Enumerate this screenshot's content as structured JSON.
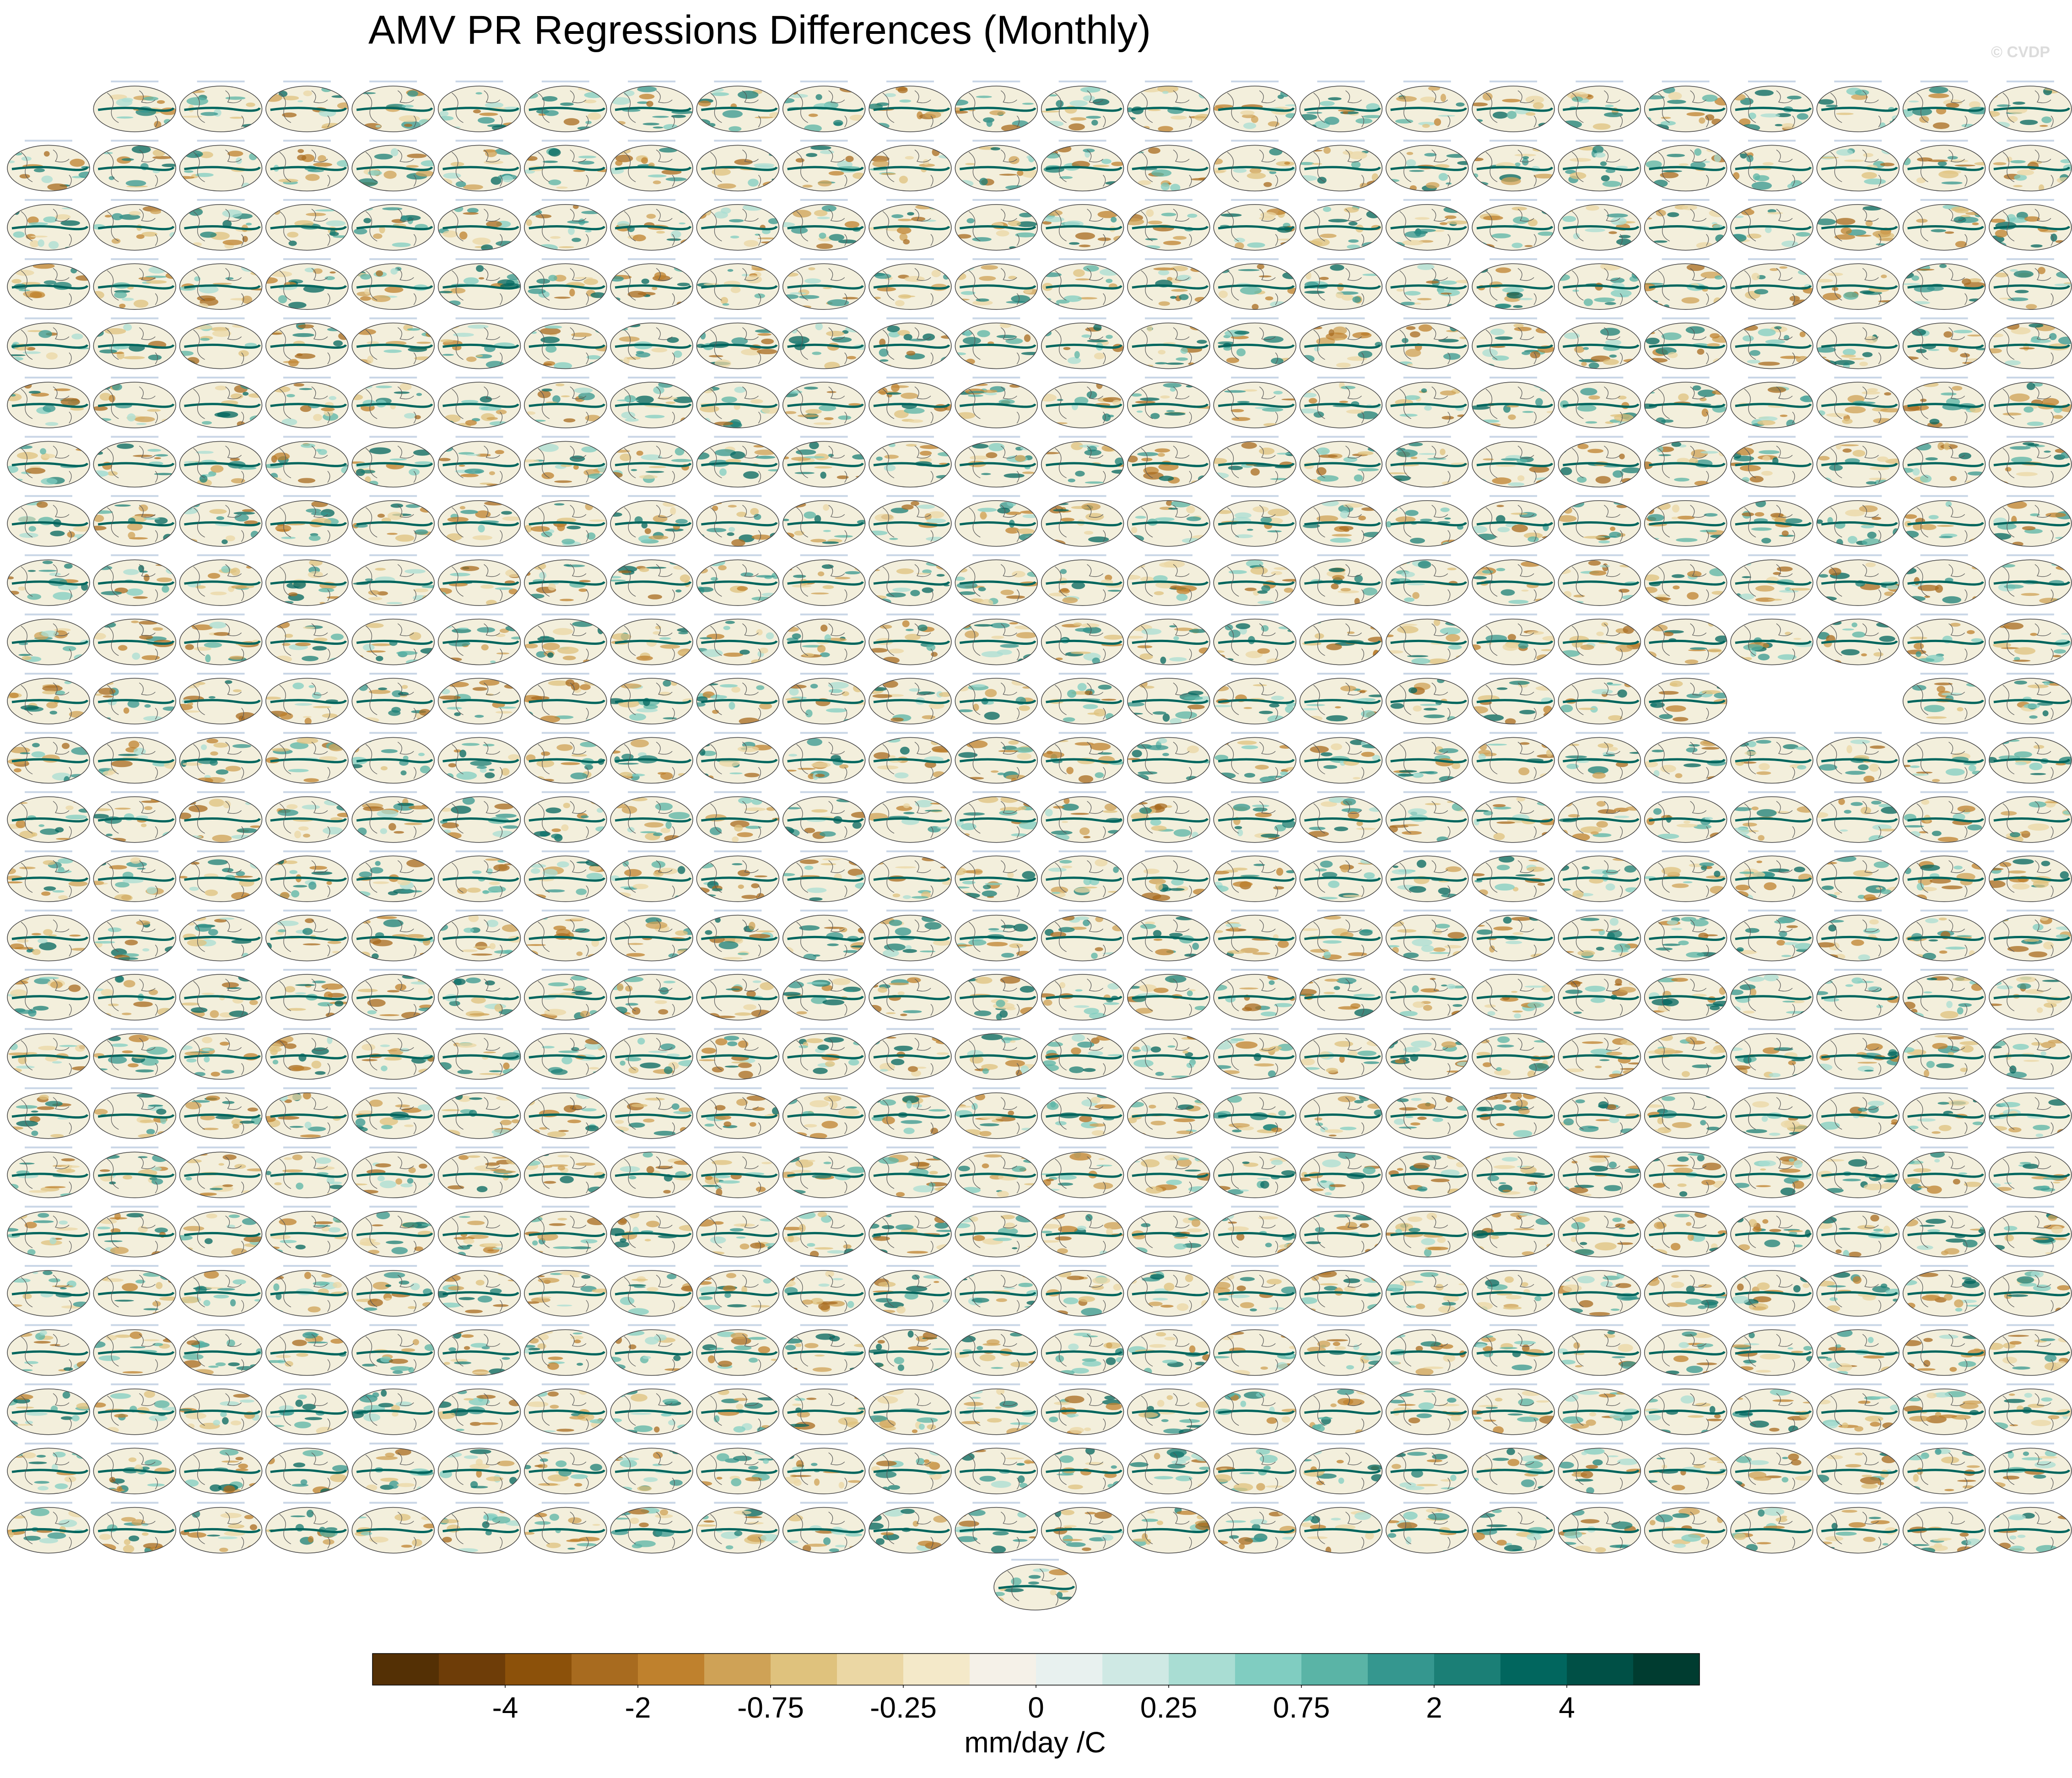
{
  "chart_data": {
    "type": "map-panels",
    "title": "AMV PR Regressions Differences (Monthly)",
    "watermark": "© CVDP",
    "colorbar_colors": [
      "#543005",
      "#6e3d08",
      "#8c510a",
      "#a86b1f",
      "#bf812d",
      "#cfa256",
      "#dfc27d",
      "#ebd7a4",
      "#f4e9c9",
      "#f5f1e8",
      "#e8f1ef",
      "#cfe9e4",
      "#a9ddd3",
      "#80cdc1",
      "#5ab4a6",
      "#35978f",
      "#1b7f76",
      "#01665e",
      "#005046",
      "#003c30"
    ],
    "ticks": [
      -4,
      -2,
      -0.75,
      -0.25,
      0,
      0.25,
      0.75,
      2,
      4
    ],
    "colorbar_label": "mm/day /C"
  }
}
